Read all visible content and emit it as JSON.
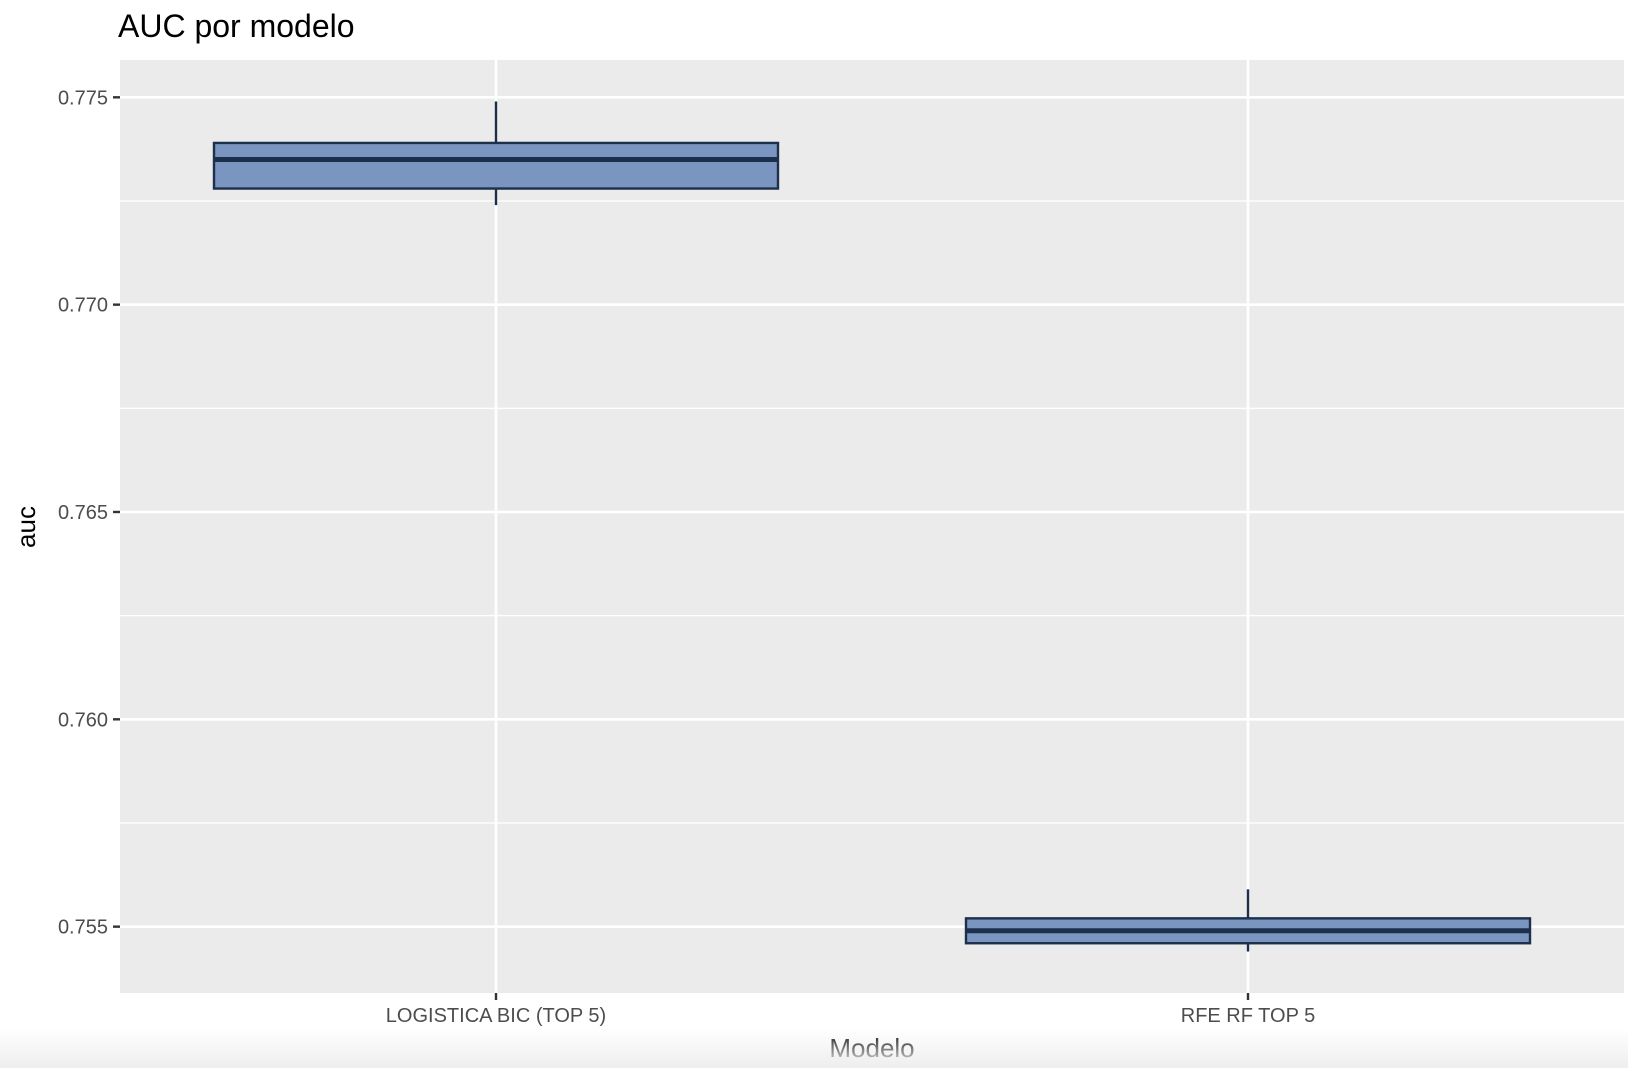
{
  "chart_data": {
    "type": "box",
    "title": "AUC por modelo",
    "xlabel": "Modelo",
    "ylabel": "auc",
    "categories": [
      "LOGISTICA BIC (TOP 5)",
      "RFE RF TOP 5"
    ],
    "boxes": [
      {
        "category": "LOGISTICA BIC (TOP 5)",
        "whisker_low": 0.7724,
        "q1": 0.7728,
        "median": 0.7735,
        "q3": 0.7739,
        "whisker_high": 0.7749
      },
      {
        "category": "RFE RF TOP 5",
        "whisker_low": 0.7544,
        "q1": 0.7546,
        "median": 0.7549,
        "q3": 0.7552,
        "whisker_high": 0.7559
      }
    ],
    "ylim": [
      0.7534,
      0.7759
    ],
    "yticks": [
      0.755,
      0.76,
      0.765,
      0.77,
      0.775
    ],
    "ytick_labels": [
      "0.755",
      "0.760",
      "0.765",
      "0.770",
      "0.775"
    ],
    "grid": true,
    "legend": "none",
    "colors": {
      "panel": "#EBEBEB",
      "grid": "#FFFFFF",
      "box_fill": "#7A96C0",
      "box_stroke": "#1C2F4B",
      "tick_text": "#4D4D4D",
      "tick_mark": "#333333"
    }
  }
}
